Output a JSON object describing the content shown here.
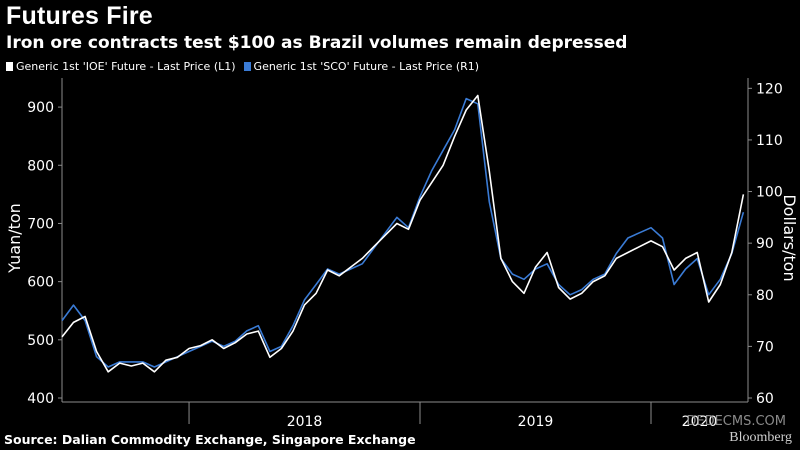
{
  "title": "Futures Fire",
  "subtitle": "Iron ore contracts test $100 as Brazil volumes remain depressed",
  "legend": [
    {
      "label": "Generic 1st 'IOE' Future - Last Price (L1)",
      "color": "#ffffff"
    },
    {
      "label": "Generic 1st 'SCO' Future - Last Price (R1)",
      "color": "#3a7bd5"
    }
  ],
  "footer": "Source: Dalian Commodity Exchange, Singapore Exchange",
  "logo": "Bloomberg",
  "watermark": "DEDECMS.COM",
  "chart_data": {
    "type": "line",
    "title": "Futures Fire",
    "ylabel_left": "Yuan/ton",
    "ylabel_right": "Dollars/ton",
    "x_tick_labels": [
      "2018",
      "2019",
      "2020"
    ],
    "x_domain": [
      2017.45,
      2020.42
    ],
    "ylim_left": [
      400,
      950
    ],
    "ylim_right": [
      60,
      122
    ],
    "yticks_left": [
      400,
      500,
      600,
      700,
      800,
      900
    ],
    "yticks_right": [
      60,
      70,
      80,
      90,
      100,
      110,
      120
    ],
    "series": [
      {
        "name": "Generic 1st 'IOE' Future - Last Price (L1)",
        "axis": "left",
        "color": "#ffffff",
        "x": [
          2017.45,
          2017.5,
          2017.55,
          2017.6,
          2017.65,
          2017.7,
          2017.75,
          2017.8,
          2017.85,
          2017.9,
          2017.95,
          2018.0,
          2018.05,
          2018.1,
          2018.15,
          2018.2,
          2018.25,
          2018.3,
          2018.35,
          2018.4,
          2018.45,
          2018.5,
          2018.55,
          2018.6,
          2018.65,
          2018.7,
          2018.75,
          2018.8,
          2018.85,
          2018.9,
          2018.95,
          2019.0,
          2019.05,
          2019.1,
          2019.15,
          2019.2,
          2019.25,
          2019.3,
          2019.35,
          2019.4,
          2019.45,
          2019.5,
          2019.55,
          2019.6,
          2019.65,
          2019.7,
          2019.75,
          2019.8,
          2019.85,
          2019.9,
          2019.95,
          2020.0,
          2020.05,
          2020.1,
          2020.15,
          2020.2,
          2020.25,
          2020.3,
          2020.35,
          2020.4
        ],
        "values": [
          505,
          530,
          540,
          480,
          445,
          460,
          455,
          460,
          445,
          465,
          470,
          485,
          490,
          500,
          485,
          495,
          510,
          515,
          470,
          485,
          515,
          560,
          580,
          620,
          610,
          625,
          640,
          660,
          680,
          700,
          690,
          740,
          770,
          800,
          850,
          895,
          920,
          790,
          640,
          600,
          580,
          625,
          650,
          590,
          570,
          580,
          600,
          610,
          640,
          650,
          660,
          670,
          660,
          620,
          640,
          650,
          565,
          595,
          650,
          750
        ]
      },
      {
        "name": "Generic 1st 'SCO' Future - Last Price (R1)",
        "axis": "right",
        "color": "#3a7bd5",
        "x": [
          2017.45,
          2017.5,
          2017.55,
          2017.6,
          2017.65,
          2017.7,
          2017.75,
          2017.8,
          2017.85,
          2017.9,
          2017.95,
          2018.0,
          2018.05,
          2018.1,
          2018.15,
          2018.2,
          2018.25,
          2018.3,
          2018.35,
          2018.4,
          2018.45,
          2018.5,
          2018.55,
          2018.6,
          2018.65,
          2018.7,
          2018.75,
          2018.8,
          2018.85,
          2018.9,
          2018.95,
          2019.0,
          2019.05,
          2019.1,
          2019.15,
          2019.2,
          2019.25,
          2019.3,
          2019.35,
          2019.4,
          2019.45,
          2019.5,
          2019.55,
          2019.6,
          2019.65,
          2019.7,
          2019.75,
          2019.8,
          2019.85,
          2019.9,
          2019.95,
          2020.0,
          2020.05,
          2020.1,
          2020.15,
          2020.2,
          2020.25,
          2020.3,
          2020.35,
          2020.4
        ],
        "values": [
          75,
          78,
          75,
          68,
          66,
          67,
          67,
          67,
          66,
          67,
          68,
          69,
          70,
          71,
          70,
          71,
          73,
          74,
          69,
          70,
          74,
          79,
          82,
          85,
          84,
          85,
          86,
          89,
          92,
          95,
          93,
          99,
          104,
          108,
          112,
          118,
          117,
          98,
          87,
          84,
          83,
          85,
          86,
          82,
          80,
          81,
          83,
          84,
          88,
          91,
          92,
          93,
          91,
          82,
          85,
          87,
          80,
          83,
          88,
          96
        ]
      }
    ]
  }
}
